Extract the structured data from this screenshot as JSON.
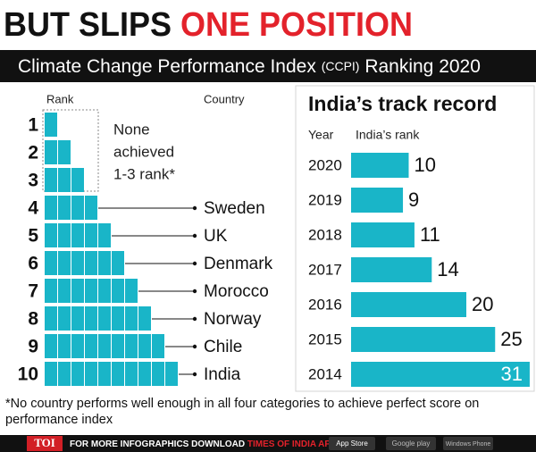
{
  "headline": {
    "lead": "BUT SLIPS",
    "highlight": "ONE POSITION"
  },
  "banner": {
    "main": "Climate Change Performance Index",
    "abbr": "(CCPI)",
    "rest": "Ranking 2020"
  },
  "chart_data": [
    {
      "type": "rank_steps",
      "rank_header": "Rank",
      "country_header": "Country",
      "ranks": [
        1,
        2,
        3,
        4,
        5,
        6,
        7,
        8,
        9,
        10
      ],
      "countries": [
        null,
        null,
        null,
        "Sweden",
        "UK",
        "Denmark",
        "Morocco",
        "Norway",
        "Chile",
        "India"
      ],
      "note": [
        "None",
        "achieved",
        "1-3 rank*"
      ],
      "color": "#19b5c8"
    },
    {
      "type": "bar",
      "title": "India’s track record",
      "x_label": "Year",
      "y_label": "India’s rank",
      "categories": [
        "2020",
        "2019",
        "2018",
        "2017",
        "2016",
        "2015",
        "2014"
      ],
      "values": [
        10,
        9,
        11,
        14,
        20,
        25,
        31
      ],
      "color": "#19b5c8"
    }
  ],
  "footnote": [
    "*No country performs well enough in all four categories to achieve perfect score on",
    "performance index"
  ],
  "footer": {
    "brand": "TOI",
    "cta": "FOR MORE INFOGRAPHICS DOWNLOAD",
    "app": "TIMES OF INDIA APP",
    "store1": "App Store",
    "store2": "Google play",
    "store3": "Windows Phone"
  }
}
